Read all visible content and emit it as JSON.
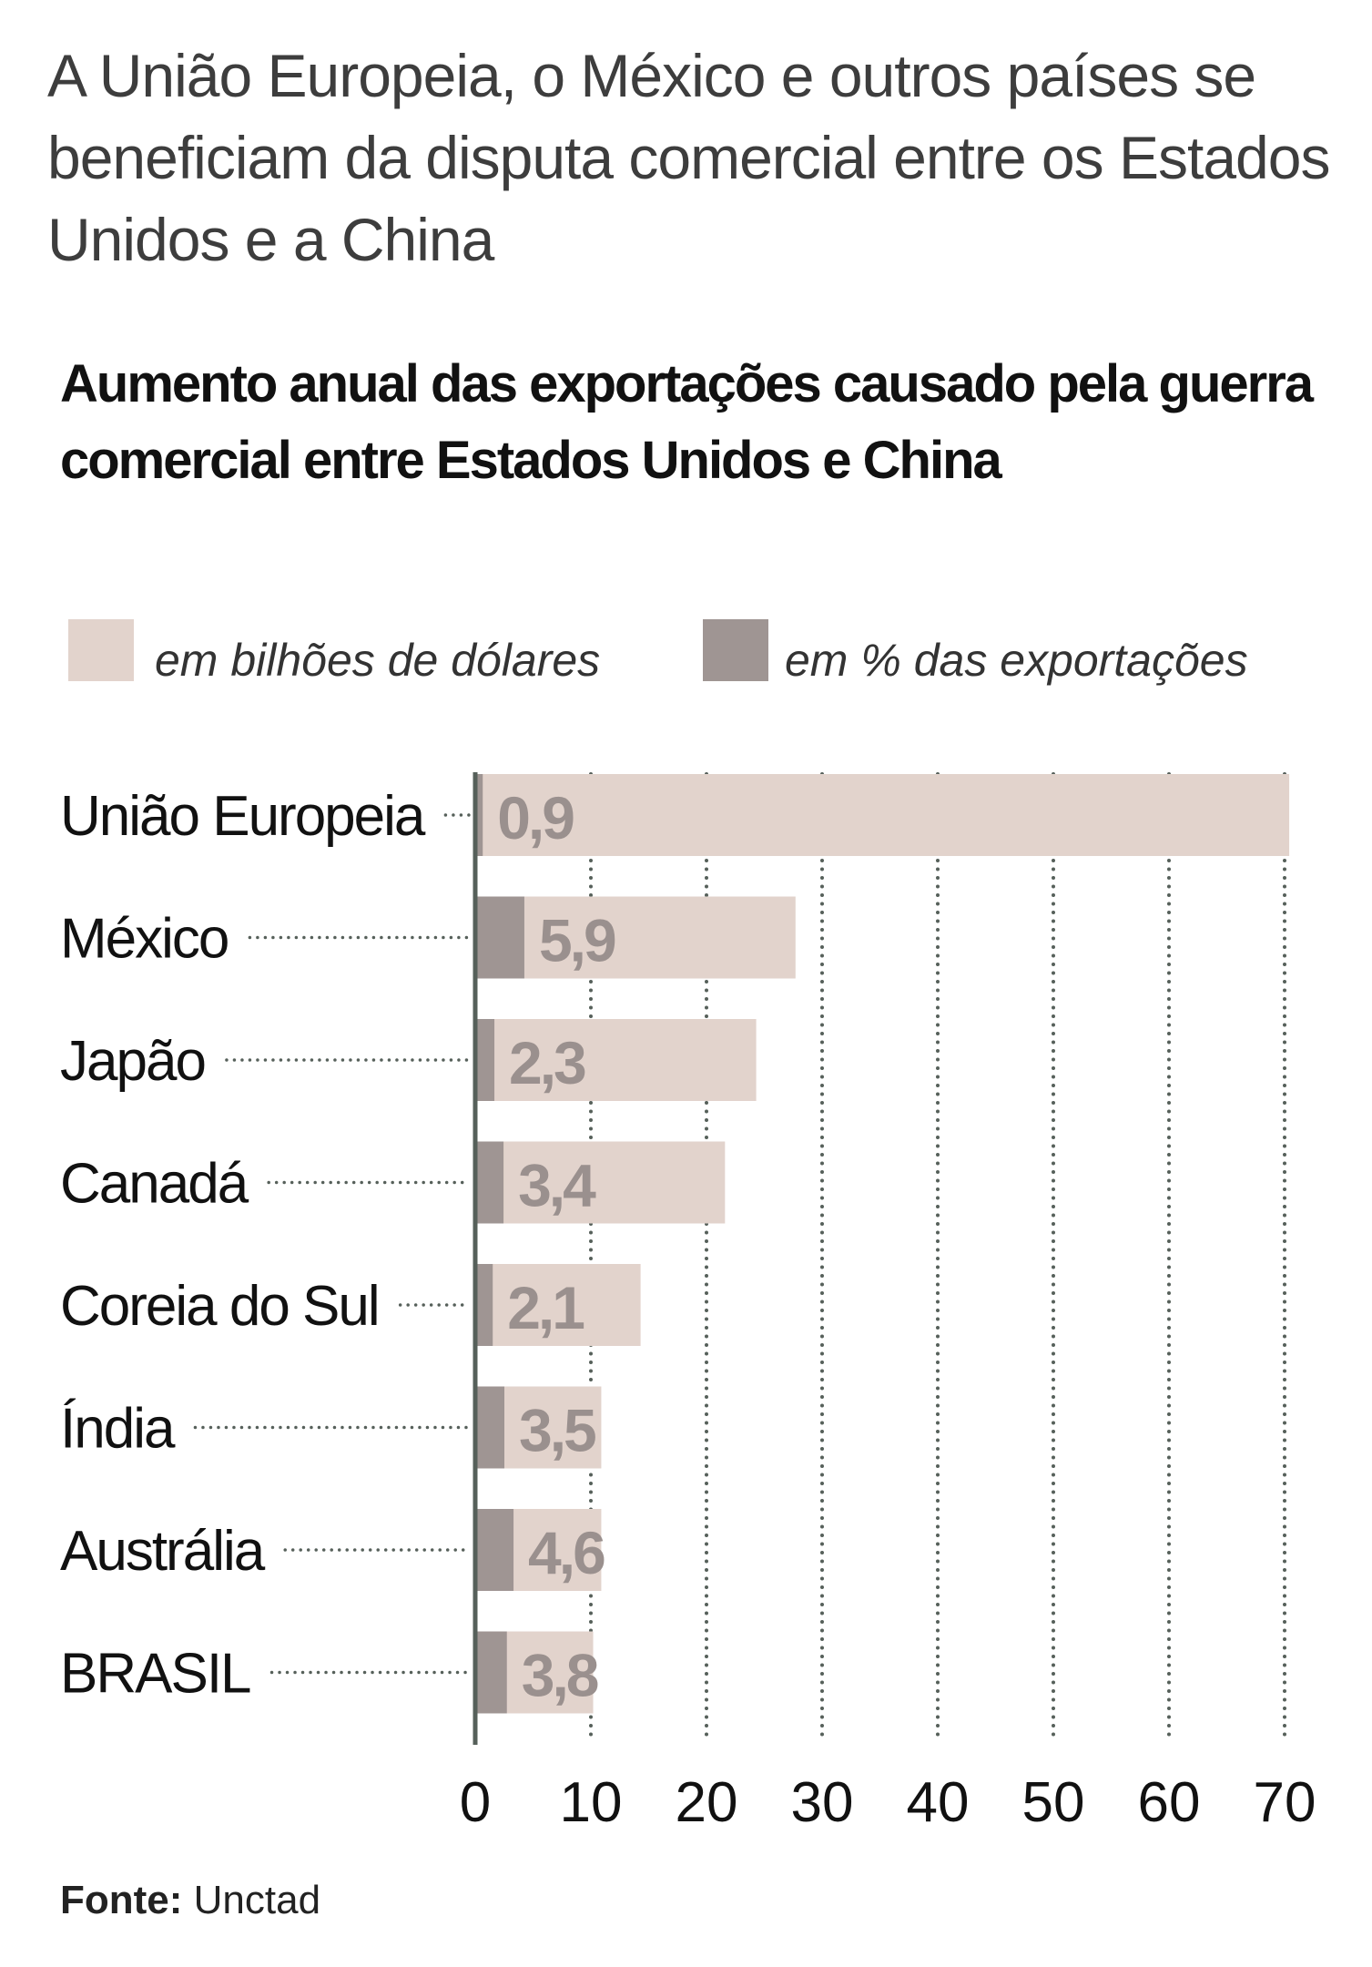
{
  "headline": "A União Europeia, o México e outros países se beneficiam da disputa comercial entre os Estados Unidos e a China",
  "source": {
    "label": "Fonte:",
    "value": "Unctad"
  },
  "colors": {
    "billions": "#e2d3cc",
    "percent": "#9f9593",
    "axis": "#56605a",
    "label_text": "#9a908e"
  },
  "chart_data": {
    "type": "bar",
    "orientation": "horizontal",
    "title": "Aumento anual das exportações causado pela guerra comercial entre Estados Unidos e China",
    "legend": [
      "em bilhões de dólares",
      "em % das exportações"
    ],
    "legend_position": "top",
    "categories": [
      "União Europeia",
      "México",
      "Japão",
      "Canadá",
      "Coreia do Sul",
      "Índia",
      "Austrália",
      "BRASIL"
    ],
    "series": [
      {
        "name": "em bilhões de dólares",
        "values": [
          70.4,
          27.7,
          24.3,
          21.6,
          14.3,
          10.9,
          10.9,
          10.2
        ]
      },
      {
        "name": "em % das exportações",
        "values": [
          0.9,
          5.9,
          2.3,
          3.4,
          2.1,
          3.5,
          4.6,
          3.8
        ],
        "labels": [
          "0,9",
          "5,9",
          "2,3",
          "3,4",
          "2,1",
          "3,5",
          "4,6",
          "3,8"
        ]
      }
    ],
    "xlim": [
      0,
      70
    ],
    "xticks": [
      "0",
      "10",
      "20",
      "30",
      "40",
      "50",
      "60",
      "70"
    ],
    "grid": true
  }
}
